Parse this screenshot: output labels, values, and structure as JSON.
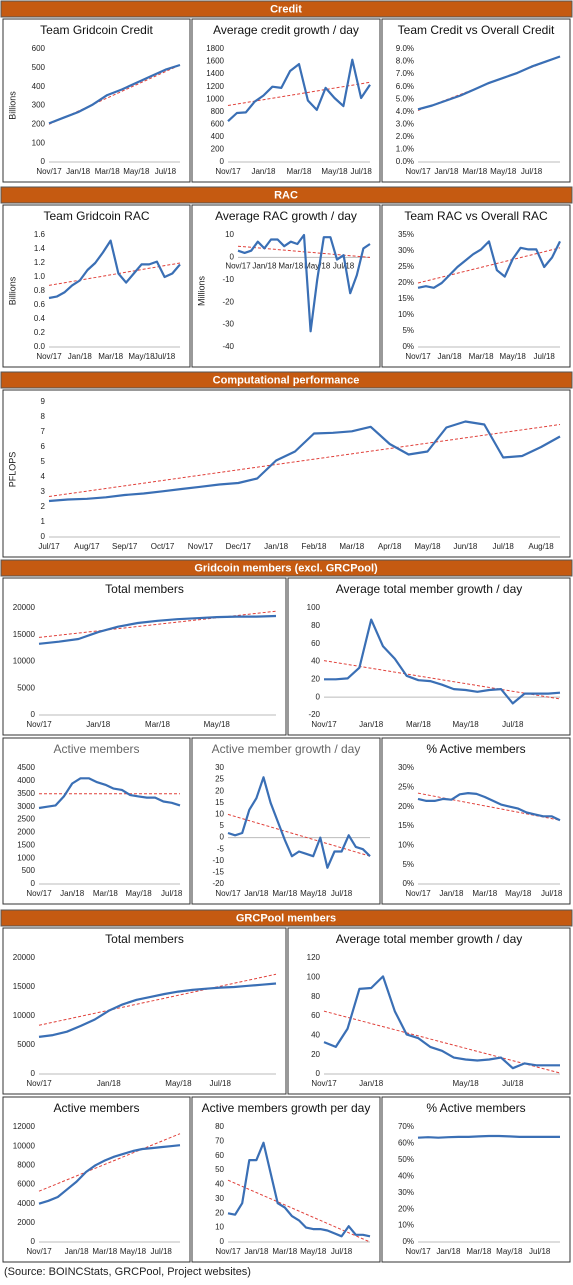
{
  "sections": [
    "Credit",
    "RAC",
    "Computational performance",
    "Gridcoin members (excl. GRCPool)",
    "GRCPool members"
  ],
  "source": "(Source: BOINCStats, GRCPool, Project websites)",
  "chart_data": [
    {
      "type": "line",
      "title": "Team Gridcoin Credit",
      "y_label": "Billions",
      "color": "#3a6fb5",
      "trend_color": "#e0403a",
      "categories": [
        "Nov/17",
        null,
        "Jan/18",
        null,
        "Mar/18",
        null,
        "May/18",
        null,
        "Jul/18",
        null
      ],
      "values": [
        205,
        235,
        265,
        305,
        355,
        385,
        420,
        455,
        490,
        515
      ],
      "trend": [
        200,
        515
      ],
      "ylim": [
        0,
        600
      ],
      "yticks": [
        0,
        100,
        200,
        300,
        400,
        500,
        600
      ]
    },
    {
      "type": "line",
      "title": "Average credit growth / day",
      "color": "#3a6fb5",
      "trend_color": "#e0403a",
      "categories": [
        "Nov/17",
        null,
        null,
        null,
        "Jan/18",
        null,
        null,
        null,
        "Mar/18",
        null,
        null,
        null,
        "May/18",
        null,
        null,
        "Jul/18",
        null
      ],
      "values": [
        650,
        780,
        790,
        960,
        1060,
        1200,
        1180,
        1450,
        1560,
        980,
        830,
        1180,
        1020,
        890,
        1630,
        1020,
        1230
      ],
      "trend": [
        900,
        1270
      ],
      "ylim": [
        0,
        1800
      ],
      "yticks": [
        0,
        200,
        400,
        600,
        800,
        1000,
        1200,
        1400,
        1600,
        1800
      ]
    },
    {
      "type": "line",
      "title": "Team Credit vs Overall Credit",
      "color": "#3a6fb5",
      "trend_color": "#e0403a",
      "categories": [
        "Nov/17",
        null,
        "Jan/18",
        null,
        "Mar/18",
        null,
        "May/18",
        null,
        "Jul/18",
        null,
        null
      ],
      "values": [
        4.2,
        4.5,
        4.9,
        5.3,
        5.8,
        6.3,
        6.7,
        7.1,
        7.6,
        8.0,
        8.4
      ],
      "trend": [
        4.1,
        8.4
      ],
      "ylim": [
        0,
        9
      ],
      "yticks": [
        {
          "value": 0,
          "label": "0.0%"
        },
        {
          "value": 1,
          "label": "1.0%"
        },
        {
          "value": 2,
          "label": "2.0%"
        },
        {
          "value": 3,
          "label": "3.0%"
        },
        {
          "value": 4,
          "label": "4.0%"
        },
        {
          "value": 5,
          "label": "5.0%"
        },
        {
          "value": 6,
          "label": "6.0%"
        },
        {
          "value": 7,
          "label": "7.0%"
        },
        {
          "value": 8,
          "label": "8.0%"
        },
        {
          "value": 9,
          "label": "9.0%"
        }
      ]
    },
    {
      "type": "line",
      "title": "Team Gridcoin RAC",
      "y_label": "Billions",
      "color": "#3a6fb5",
      "trend_color": "#e0403a",
      "categories": [
        "Nov/17",
        null,
        null,
        null,
        "Jan/18",
        null,
        null,
        null,
        "Mar/18",
        null,
        null,
        null,
        "May/18",
        null,
        null,
        "Jul/18",
        null,
        null
      ],
      "values": [
        0.7,
        0.72,
        0.78,
        0.88,
        0.95,
        1.1,
        1.2,
        1.35,
        1.52,
        1.05,
        0.92,
        1.05,
        1.18,
        1.18,
        1.22,
        1.0,
        1.05,
        1.18
      ],
      "trend": [
        0.88,
        1.2
      ],
      "ylim": [
        0,
        1.6
      ],
      "yticks": [
        {
          "value": 0,
          "label": "0.0"
        },
        0.2,
        0.4,
        0.6,
        0.8,
        {
          "value": 1,
          "label": "1.0"
        },
        1.2,
        1.4,
        1.6
      ]
    },
    {
      "type": "line",
      "title": "Average RAC growth / day",
      "y_label": "Millions",
      "color": "#3a6fb5",
      "trend_color": "#e0403a",
      "x_labels_at_zero": true,
      "categories": [
        "Nov/17",
        null,
        null,
        null,
        "Jan/18",
        null,
        null,
        null,
        "Mar/18",
        null,
        null,
        null,
        "May/18",
        null,
        null,
        null,
        "Jul/18",
        null,
        null,
        null,
        null
      ],
      "values": [
        3,
        2,
        3,
        7,
        4,
        8,
        8,
        5,
        7,
        6,
        10,
        -33,
        -10,
        9,
        9,
        -1,
        1,
        -16,
        -8,
        4,
        6
      ],
      "trend": [
        5,
        0
      ],
      "ylim": [
        -40,
        10
      ],
      "yticks": [
        -40,
        -30,
        -20,
        -10,
        0,
        10
      ]
    },
    {
      "type": "line",
      "title": "Team RAC vs Overall RAC",
      "color": "#3a6fb5",
      "trend_color": "#e0403a",
      "categories": [
        "Nov/17",
        null,
        null,
        null,
        "Jan/18",
        null,
        null,
        null,
        "Mar/18",
        null,
        null,
        null,
        "May/18",
        null,
        null,
        null,
        "Jul/18",
        null,
        null
      ],
      "values": [
        18.5,
        19,
        18.5,
        20,
        22.5,
        25,
        27,
        29,
        30.5,
        33,
        24,
        22,
        27.5,
        31,
        30.5,
        30.5,
        25,
        28,
        33
      ],
      "trend": [
        20,
        31
      ],
      "ylim": [
        0,
        35
      ],
      "yticks": [
        {
          "value": 0,
          "label": "0%"
        },
        {
          "value": 5,
          "label": "5%"
        },
        {
          "value": 10,
          "label": "10%"
        },
        {
          "value": 15,
          "label": "15%"
        },
        {
          "value": 20,
          "label": "20%"
        },
        {
          "value": 25,
          "label": "25%"
        },
        {
          "value": 30,
          "label": "30%"
        },
        {
          "value": 35,
          "label": "35%"
        }
      ]
    },
    {
      "type": "line",
      "y_label": "PFLOPS",
      "color": "#3a6fb5",
      "trend_color": "#e0403a",
      "categories": [
        "Jul/17",
        null,
        "Aug/17",
        null,
        "Sep/17",
        null,
        "Oct/17",
        null,
        "Nov/17",
        null,
        "Dec/17",
        null,
        "Jan/18",
        null,
        "Feb/18",
        null,
        "Mar/18",
        null,
        "Apr/18",
        null,
        "May/18",
        null,
        "Jun/18",
        null,
        "Jul/18",
        null,
        "Aug/18",
        null
      ],
      "values": [
        2.4,
        2.5,
        2.55,
        2.65,
        2.8,
        2.9,
        3.05,
        3.2,
        3.35,
        3.5,
        3.6,
        3.9,
        5.1,
        5.7,
        6.9,
        6.95,
        7.05,
        7.35,
        6.2,
        5.5,
        5.7,
        7.3,
        7.7,
        7.5,
        5.3,
        5.4,
        6.0,
        6.7
      ],
      "trend": [
        2.7,
        7.5
      ],
      "ylim": [
        0,
        9
      ],
      "yticks": [
        0,
        1,
        2,
        3,
        4,
        5,
        6,
        7,
        8,
        9
      ]
    },
    {
      "type": "line",
      "title": "Total members",
      "color": "#3a6fb5",
      "trend_color": "#e0403a",
      "categories": [
        "Nov/17",
        null,
        null,
        "Jan/18",
        null,
        null,
        "Mar/18",
        null,
        null,
        "May/18",
        null,
        null,
        null
      ],
      "values": [
        13300,
        13700,
        14200,
        15500,
        16500,
        17200,
        17600,
        17900,
        18100,
        18300,
        18400,
        18400,
        18500
      ],
      "trend": [
        14500,
        19400
      ],
      "ylim": [
        0,
        20000
      ],
      "yticks": [
        0,
        5000,
        10000,
        15000,
        20000
      ]
    },
    {
      "type": "line",
      "title": "Average total member growth / day",
      "color": "#3a6fb5",
      "trend_color": "#e0403a",
      "categories": [
        "Nov/17",
        null,
        null,
        null,
        "Jan/18",
        null,
        null,
        null,
        "Mar/18",
        null,
        null,
        null,
        "May/18",
        null,
        null,
        null,
        "Jul/18",
        null,
        null,
        null,
        null
      ],
      "values": [
        20,
        20,
        21,
        33,
        87,
        57,
        43,
        24,
        19,
        18,
        14,
        9,
        8,
        6,
        8,
        9,
        -7,
        4,
        4,
        4,
        5
      ],
      "trend": [
        41,
        -2
      ],
      "ylim": [
        -20,
        100
      ],
      "yticks": [
        -20,
        0,
        20,
        40,
        60,
        80,
        100
      ]
    },
    {
      "type": "line",
      "title": "Active members",
      "title_color": "#666666",
      "color": "#3a6fb5",
      "trend_color": "#e0403a",
      "categories": [
        "Nov/17",
        null,
        null,
        null,
        "Jan/18",
        null,
        null,
        null,
        "Mar/18",
        null,
        null,
        null,
        "May/18",
        null,
        null,
        null,
        "Jul/18",
        null
      ],
      "values": [
        2950,
        3000,
        3050,
        3400,
        3900,
        4100,
        4100,
        3950,
        3850,
        3700,
        3650,
        3450,
        3400,
        3350,
        3350,
        3200,
        3150,
        3050
      ],
      "trend": [
        3500,
        3500
      ],
      "ylim": [
        0,
        4500
      ],
      "yticks": [
        0,
        500,
        1000,
        1500,
        2000,
        2500,
        3000,
        3500,
        4000,
        4500
      ]
    },
    {
      "type": "line",
      "title": "Active member growth / day",
      "title_color": "#666666",
      "color": "#3a6fb5",
      "trend_color": "#e0403a",
      "categories": [
        "Nov/17",
        null,
        null,
        null,
        "Jan/18",
        null,
        null,
        null,
        "Mar/18",
        null,
        null,
        null,
        "May/18",
        null,
        null,
        null,
        "Jul/18",
        null,
        null,
        null,
        null
      ],
      "values": [
        2,
        1,
        2,
        12,
        17,
        26,
        15,
        7,
        -1,
        -8,
        -6,
        -7,
        -8,
        0,
        -13,
        -6,
        -6,
        1,
        -4,
        -5,
        -8
      ],
      "trend": [
        10,
        -8
      ],
      "ylim": [
        -20,
        30
      ],
      "yticks": [
        -20,
        -15,
        -10,
        -5,
        0,
        5,
        10,
        15,
        20,
        25,
        30
      ]
    },
    {
      "type": "line",
      "title": "% Active members",
      "color": "#3a6fb5",
      "trend_color": "#e0403a",
      "categories": [
        "Nov/17",
        null,
        null,
        null,
        "Jan/18",
        null,
        null,
        null,
        "Mar/18",
        null,
        null,
        null,
        "May/18",
        null,
        null,
        null,
        "Jul/18",
        null
      ],
      "values": [
        22,
        21.5,
        21.5,
        22,
        21.8,
        23.2,
        23.5,
        23.3,
        22.5,
        21.5,
        20.5,
        20,
        19.5,
        18.5,
        18,
        17.5,
        17.5,
        16.5
      ],
      "trend": [
        23.5,
        16.5
      ],
      "ylim": [
        0,
        30
      ],
      "yticks": [
        {
          "value": 0,
          "label": "0%"
        },
        {
          "value": 5,
          "label": "5%"
        },
        {
          "value": 10,
          "label": "10%"
        },
        {
          "value": 15,
          "label": "15%"
        },
        {
          "value": 20,
          "label": "20%"
        },
        {
          "value": 25,
          "label": "25%"
        },
        {
          "value": 30,
          "label": "30%"
        }
      ]
    },
    {
      "type": "line",
      "title": "Total members",
      "color": "#3a6fb5",
      "trend_color": "#e0403a",
      "categories": [
        "Nov/17",
        null,
        null,
        null,
        null,
        "Jan/18",
        null,
        null,
        null,
        null,
        "May/18",
        null,
        null,
        "Jul/18",
        null,
        null,
        null,
        null
      ],
      "values": [
        6400,
        6700,
        7300,
        8300,
        9400,
        10900,
        12000,
        12800,
        13300,
        13800,
        14200,
        14500,
        14700,
        14900,
        15000,
        15200,
        15400,
        15600
      ],
      "trend": [
        8400,
        17200
      ],
      "ylim": [
        0,
        20000
      ],
      "yticks": [
        0,
        5000,
        10000,
        15000,
        20000
      ]
    },
    {
      "type": "line",
      "title": "Average total member growth / day",
      "color": "#3a6fb5",
      "trend_color": "#e0403a",
      "categories": [
        "Nov/17",
        null,
        null,
        null,
        "Jan/18",
        null,
        null,
        null,
        null,
        null,
        null,
        null,
        "May/18",
        null,
        null,
        null,
        "Jul/18",
        null,
        null,
        null,
        null
      ],
      "values": [
        33,
        28,
        47,
        88,
        89,
        101,
        65,
        41,
        37,
        28,
        24,
        17,
        15,
        14,
        15,
        17,
        6,
        11,
        9,
        9,
        9
      ],
      "trend": [
        65,
        1
      ],
      "ylim": [
        0,
        120
      ],
      "yticks": [
        0,
        20,
        40,
        60,
        80,
        100,
        120
      ]
    },
    {
      "type": "line",
      "title": "Active members",
      "color": "#3a6fb5",
      "trend_color": "#e0403a",
      "categories": [
        "Nov/17",
        null,
        null,
        null,
        "Jan/18",
        null,
        null,
        "Mar/18",
        null,
        null,
        "May/18",
        null,
        null,
        "Jul/18",
        null,
        null
      ],
      "values": [
        4000,
        4300,
        4700,
        5500,
        6300,
        7300,
        8000,
        8500,
        8900,
        9200,
        9500,
        9700,
        9800,
        9900,
        10000,
        10100
      ],
      "trend": [
        5300,
        11300
      ],
      "ylim": [
        0,
        12000
      ],
      "yticks": [
        0,
        2000,
        4000,
        6000,
        8000,
        10000,
        12000
      ]
    },
    {
      "type": "line",
      "title": "Active members growth per day",
      "color": "#3a6fb5",
      "trend_color": "#e0403a",
      "categories": [
        "Nov/17",
        null,
        null,
        null,
        "Jan/18",
        null,
        null,
        null,
        "Mar/18",
        null,
        null,
        null,
        "May/18",
        null,
        null,
        null,
        "Jul/18",
        null,
        null,
        null,
        null
      ],
      "values": [
        20,
        19,
        27,
        57,
        57,
        69,
        48,
        27,
        24,
        18,
        15,
        10,
        9,
        9,
        8,
        6,
        4,
        11,
        5,
        5,
        4
      ],
      "trend": [
        43,
        0
      ],
      "ylim": [
        0,
        80
      ],
      "yticks": [
        0,
        10,
        20,
        30,
        40,
        50,
        60,
        70,
        80
      ]
    },
    {
      "type": "line",
      "title": "% Active members",
      "color": "#3a6fb5",
      "categories": [
        "Nov/17",
        null,
        null,
        "Jan/18",
        null,
        null,
        "Mar/18",
        null,
        null,
        "May/18",
        null,
        null,
        "Jul/18",
        null,
        null
      ],
      "values": [
        63.5,
        63.8,
        63.5,
        63.8,
        64,
        64,
        64.3,
        64.5,
        64.5,
        64.3,
        64,
        64,
        64,
        64,
        64
      ],
      "ylim": [
        0,
        70
      ],
      "yticks": [
        {
          "value": 0,
          "label": "0%"
        },
        {
          "value": 10,
          "label": "10%"
        },
        {
          "value": 20,
          "label": "20%"
        },
        {
          "value": 30,
          "label": "30%"
        },
        {
          "value": 40,
          "label": "40%"
        },
        {
          "value": 50,
          "label": "50%"
        },
        {
          "value": 60,
          "label": "60%"
        },
        {
          "value": 70,
          "label": "70%"
        }
      ]
    }
  ]
}
